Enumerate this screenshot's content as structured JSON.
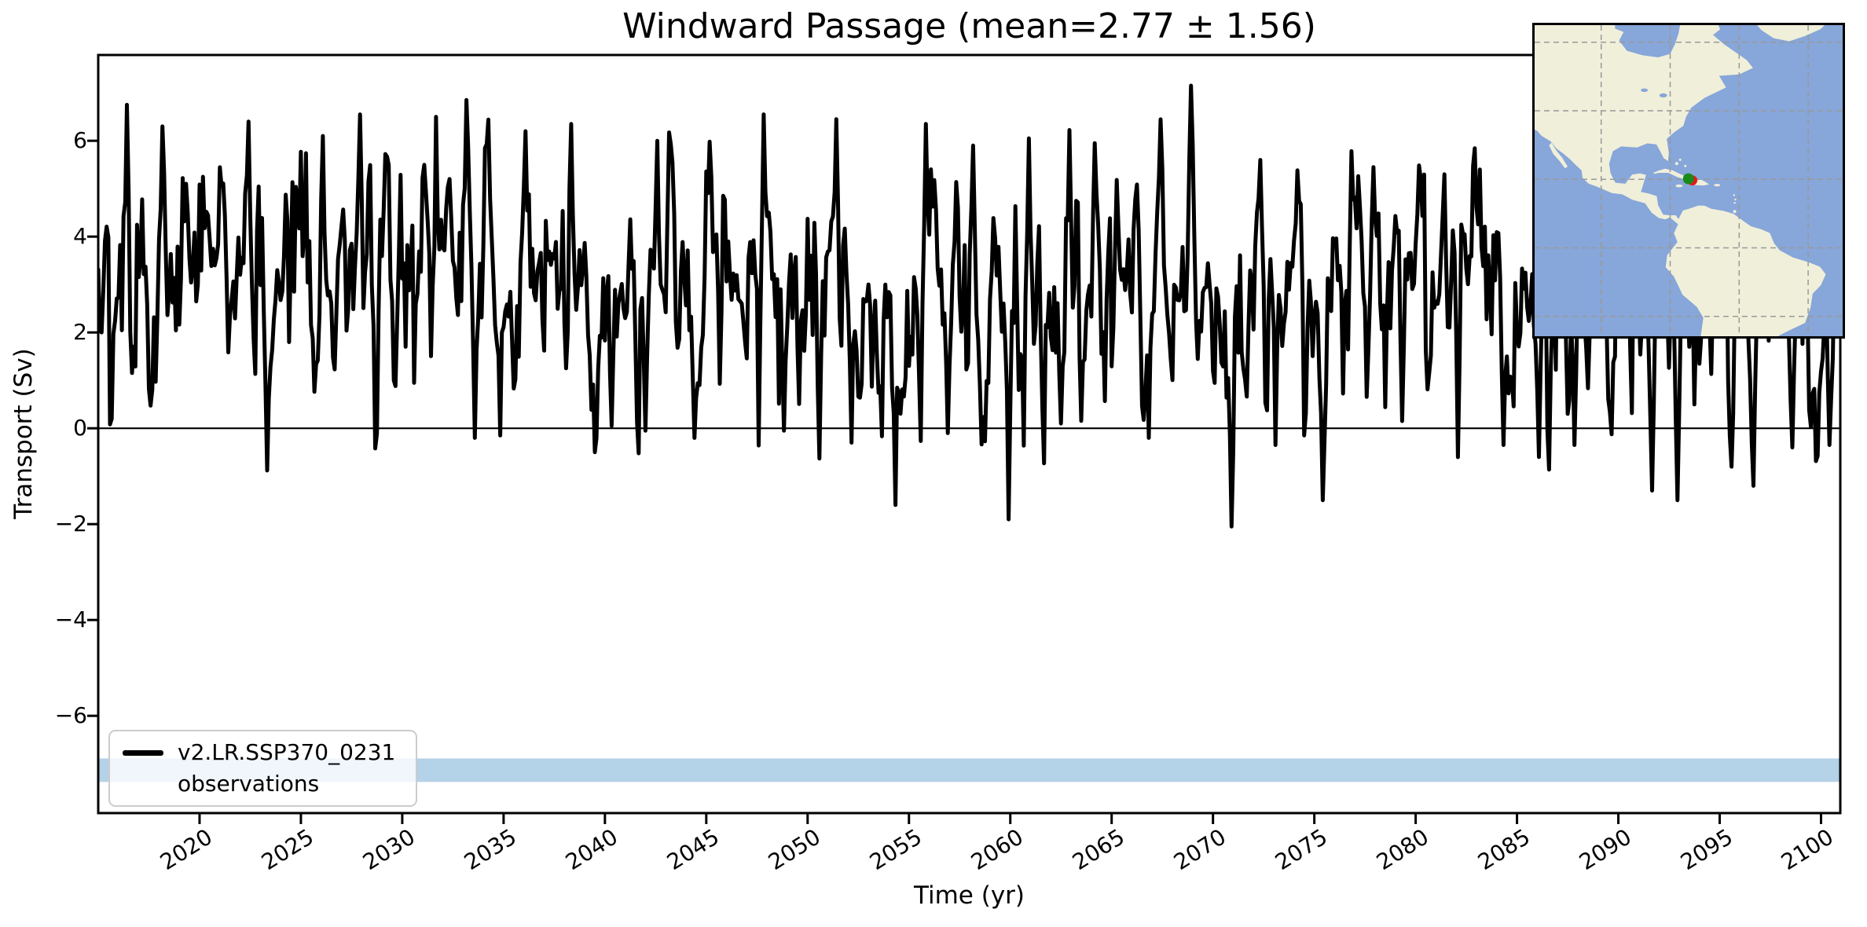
{
  "chart_data": {
    "type": "line",
    "title": "Windward Passage (mean=2.77 ± 1.56)",
    "xlabel": "Time (yr)",
    "ylabel": "Transport (Sv)",
    "xlim": [
      2015.0,
      2100.95
    ],
    "ylim": [
      -8.03,
      7.79
    ],
    "xticks": [
      2020,
      2025,
      2030,
      2035,
      2040,
      2045,
      2050,
      2055,
      2060,
      2065,
      2070,
      2075,
      2080,
      2085,
      2090,
      2095,
      2100
    ],
    "yticks": [
      -6,
      -4,
      -2,
      0,
      2,
      4,
      6
    ],
    "x_tick_rotation_deg": 32,
    "grid": false,
    "zero_line": true,
    "stats": {
      "mean": 2.77,
      "std": 1.56
    },
    "series": [
      {
        "name": "v2.LR.SSP370_0231",
        "kind": "line",
        "color": "#000000",
        "linewidth": 5,
        "cadence": "monthly",
        "generator": {
          "seed": 231,
          "start": 2015.0,
          "end": 2100.92,
          "mean_start": 2.98,
          "trend_per_yr": -0.005,
          "ar_phi": 0.52,
          "innovation_std": 1.02,
          "seasonal": [
            {
              "period_yr": 1.0,
              "amp": 0.92,
              "phase": 0.12
            },
            {
              "period_yr": 0.5,
              "amp": 0.4,
              "phase": 0.6
            }
          ],
          "soft_clip_high": 6.4,
          "soft_clip_low": -0.6,
          "hard_clip": [
            -2.06,
            7.3
          ]
        },
        "notable_minima": [
          [
            2023.35,
            -0.88
          ],
          [
            2033.6,
            -0.2
          ],
          [
            2034.8,
            -0.15
          ],
          [
            2040.3,
            0.05
          ],
          [
            2042.0,
            -0.05
          ],
          [
            2044.4,
            -0.2
          ],
          [
            2048.8,
            -0.05
          ],
          [
            2052.2,
            -0.3
          ],
          [
            2054.3,
            -1.6
          ],
          [
            2056.9,
            -0.1
          ],
          [
            2059.9,
            -1.9
          ],
          [
            2062.5,
            0.1
          ],
          [
            2066.8,
            -0.2
          ],
          [
            2070.95,
            -2.05
          ],
          [
            2073.1,
            -0.35
          ],
          [
            2075.45,
            -1.5
          ],
          [
            2079.3,
            0.15
          ],
          [
            2084.3,
            -0.35
          ],
          [
            2086.1,
            -0.6
          ],
          [
            2087.8,
            -0.35
          ],
          [
            2091.7,
            -1.3
          ],
          [
            2092.9,
            -1.5
          ],
          [
            2095.6,
            -0.8
          ],
          [
            2096.7,
            -1.2
          ],
          [
            2098.6,
            -0.4
          ],
          [
            2100.4,
            -0.35
          ]
        ],
        "notable_maxima": [
          [
            2016.45,
            6.75
          ],
          [
            2018.2,
            6.3
          ],
          [
            2022.4,
            6.4
          ],
          [
            2026.1,
            6.1
          ],
          [
            2027.9,
            6.55
          ],
          [
            2031.7,
            6.5
          ],
          [
            2033.15,
            6.85
          ],
          [
            2036.1,
            6.2
          ],
          [
            2038.3,
            6.35
          ],
          [
            2042.6,
            6.0
          ],
          [
            2047.8,
            6.55
          ],
          [
            2051.4,
            6.45
          ],
          [
            2055.8,
            6.35
          ],
          [
            2058.2,
            5.9
          ],
          [
            2060.9,
            6.05
          ],
          [
            2064.2,
            5.95
          ],
          [
            2068.9,
            7.15
          ],
          [
            2072.3,
            5.6
          ],
          [
            2077.9,
            5.45
          ],
          [
            2081.4,
            5.3
          ],
          [
            2083.2,
            5.4
          ],
          [
            2090.4,
            5.75
          ],
          [
            2094.3,
            5.2
          ],
          [
            2097.9,
            5.35
          ]
        ]
      },
      {
        "name": "observations",
        "kind": "hband",
        "y_range": [
          -7.38,
          -6.89
        ],
        "color": "#b4d2e8"
      }
    ],
    "legend": {
      "location": "lower left",
      "entries": [
        {
          "label": "v2.LR.SSP370_0231",
          "swatch": "line",
          "color": "#000000"
        },
        {
          "label": "observations",
          "swatch": "patch",
          "color": "#b4d2e8"
        }
      ]
    }
  },
  "inset_map": {
    "projection": "plate-carree",
    "lon_range": [
      -119.3,
      -30
    ],
    "lat_range": [
      -25.8,
      65
    ],
    "ocean_color": "#87a6d9",
    "land_color": "#f0efda",
    "grid_color": "#999999",
    "grid_lons": [
      -100,
      -80,
      -60,
      -40
    ],
    "grid_lats": [
      -20,
      0,
      20,
      40,
      60
    ],
    "markers": [
      {
        "name": "obs-section-point",
        "color": "#e31a1c",
        "lon": -73.6,
        "lat": 19.7
      },
      {
        "name": "model-section-point",
        "color": "#1a8a1a",
        "lon": -74.7,
        "lat": 20.15
      }
    ],
    "section_line": {
      "color": "#006400",
      "lat": 20.0,
      "lon_start": -75.6,
      "lon_end": -73.4
    }
  }
}
